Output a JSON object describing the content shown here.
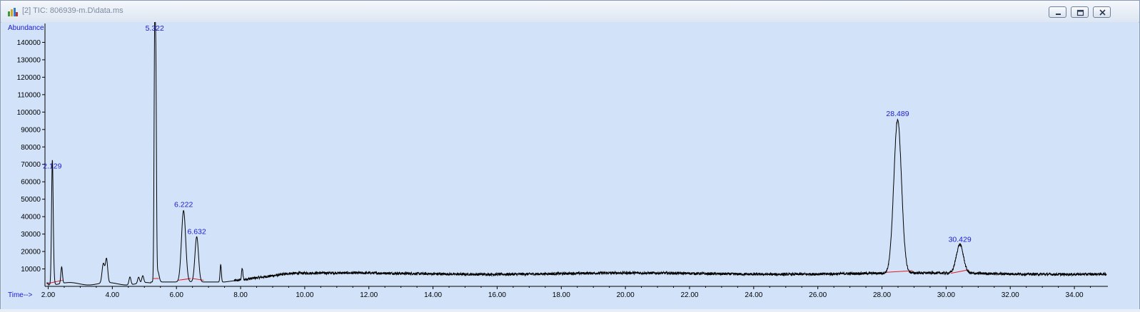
{
  "window": {
    "title": "[2] TIC: 806939-m.D\\data.ms",
    "buttons": [
      {
        "name": "minimize-button",
        "icon": "minimize-icon"
      },
      {
        "name": "restore-button",
        "icon": "restore-icon"
      },
      {
        "name": "close-button",
        "icon": "close-icon"
      }
    ]
  },
  "colors": {
    "plot_background": "#d2e3f9",
    "trace": "#000000",
    "baseline": "#e0181d",
    "label_text": "#1a1ad0",
    "axis": "#000000"
  },
  "chart_data": {
    "type": "line",
    "title": "",
    "ylabel": "Abundance",
    "xlabel": "Time-->",
    "xlim": [
      1.9,
      35.0
    ],
    "ylim": [
      0,
      150000
    ],
    "x_ticks": [
      "2.00",
      "4.00",
      "6.00",
      "8.00",
      "10.00",
      "12.00",
      "14.00",
      "16.00",
      "18.00",
      "20.00",
      "22.00",
      "24.00",
      "26.00",
      "28.00",
      "30.00",
      "32.00",
      "34.00"
    ],
    "x_tick_values": [
      2,
      4,
      6,
      8,
      10,
      12,
      14,
      16,
      18,
      20,
      22,
      24,
      26,
      28,
      30,
      32,
      34
    ],
    "y_ticks": [
      "10000",
      "20000",
      "30000",
      "40000",
      "50000",
      "60000",
      "70000",
      "80000",
      "90000",
      "100000",
      "110000",
      "120000",
      "130000",
      "140000"
    ],
    "y_tick_values": [
      10000,
      20000,
      30000,
      40000,
      50000,
      60000,
      70000,
      80000,
      90000,
      100000,
      110000,
      120000,
      130000,
      140000
    ],
    "grid": false,
    "peak_labels": [
      {
        "label": "2.129",
        "x": 2.129,
        "y": 66000
      },
      {
        "label": "5.322",
        "x": 5.322,
        "y": 145000
      },
      {
        "label": "6.222",
        "x": 6.222,
        "y": 44000
      },
      {
        "label": "6.632",
        "x": 6.632,
        "y": 28500
      },
      {
        "label": "28.489",
        "x": 28.489,
        "y": 96000
      },
      {
        "label": "30.429",
        "x": 30.429,
        "y": 24000
      }
    ],
    "peaks": [
      {
        "x": 2.129,
        "height": 64000,
        "width": 0.025
      },
      {
        "x": 2.15,
        "height": 10000,
        "width": 0.03
      },
      {
        "x": 2.42,
        "height": 9500,
        "width": 0.025
      },
      {
        "x": 3.72,
        "height": 11000,
        "width": 0.04
      },
      {
        "x": 3.82,
        "height": 13500,
        "width": 0.035
      },
      {
        "x": 4.55,
        "height": 4500,
        "width": 0.03
      },
      {
        "x": 4.82,
        "height": 3500,
        "width": 0.03
      },
      {
        "x": 4.95,
        "height": 4000,
        "width": 0.03
      },
      {
        "x": 5.322,
        "height": 143000,
        "width": 0.02
      },
      {
        "x": 5.36,
        "height": 105000,
        "width": 0.018
      },
      {
        "x": 5.42,
        "height": 6000,
        "width": 0.04
      },
      {
        "x": 6.222,
        "height": 41000,
        "width": 0.065
      },
      {
        "x": 6.632,
        "height": 26000,
        "width": 0.055
      },
      {
        "x": 7.38,
        "height": 10000,
        "width": 0.02
      },
      {
        "x": 8.05,
        "height": 6500,
        "width": 0.02
      },
      {
        "x": 28.489,
        "height": 88000,
        "width": 0.12
      },
      {
        "x": 30.429,
        "height": 16500,
        "width": 0.11
      }
    ],
    "baseline_segments": [
      [
        [
          1.95,
          1500
        ],
        [
          2.45,
          3500
        ]
      ],
      [
        [
          5.28,
          4500
        ],
        [
          5.45,
          4500
        ]
      ],
      [
        [
          6.05,
          3500
        ],
        [
          6.45,
          4500
        ]
      ],
      [
        [
          6.5,
          4500
        ],
        [
          6.85,
          3500
        ]
      ],
      [
        [
          28.1,
          8000
        ],
        [
          28.95,
          9000
        ]
      ],
      [
        [
          30.15,
          7500
        ],
        [
          30.7,
          9500
        ]
      ]
    ]
  }
}
